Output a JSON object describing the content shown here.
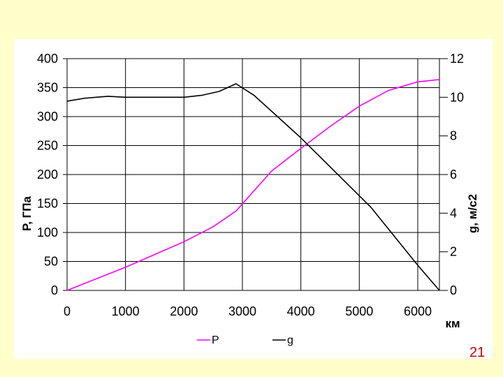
{
  "slide": {
    "number": "21"
  },
  "chart_data": {
    "type": "line",
    "title": "",
    "xlabel": "км",
    "ylabel": "P, ГПа",
    "y2label": "g, м/с2",
    "xlim": [
      0,
      6371
    ],
    "ylim": [
      0,
      400
    ],
    "y2lim": [
      0,
      12
    ],
    "x_ticks": [
      "0",
      "1000",
      "2000",
      "3000",
      "4000",
      "5000",
      "6000"
    ],
    "y_ticks": [
      "400",
      "350",
      "300",
      "250",
      "200",
      "150",
      "100",
      "50",
      "0"
    ],
    "y2_ticks": [
      "12",
      "10",
      "8",
      "6",
      "4",
      "2",
      "0"
    ],
    "grid": true,
    "legend_position": "bottom",
    "series": [
      {
        "name": "P",
        "axis": "left",
        "color": "#ff00ff",
        "x": [
          0,
          500,
          1000,
          1500,
          2000,
          2500,
          2890,
          3200,
          3500,
          4000,
          4500,
          5000,
          5500,
          6000,
          6371
        ],
        "y": [
          0,
          20,
          40,
          62,
          84,
          110,
          137,
          172,
          206,
          245,
          283,
          318,
          345,
          360,
          364
        ]
      },
      {
        "name": "g",
        "axis": "right",
        "color": "#000000",
        "x": [
          0,
          300,
          700,
          1000,
          1500,
          2000,
          2300,
          2600,
          2890,
          3200,
          3600,
          4000,
          4500,
          5000,
          5200,
          5600,
          6000,
          6371
        ],
        "y": [
          9.8,
          9.95,
          10.05,
          10.0,
          10.0,
          10.0,
          10.1,
          10.3,
          10.7,
          10.1,
          9.0,
          7.9,
          6.4,
          4.9,
          4.3,
          2.8,
          1.3,
          0
        ]
      }
    ]
  }
}
